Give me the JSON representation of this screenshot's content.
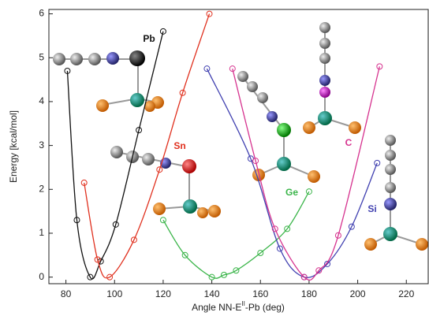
{
  "chart_data": {
    "type": "line",
    "y_label": "Energy [kcal/mol]",
    "x_label_parts": [
      "Angle NN-E",
      "II",
      "-Pb (deg)"
    ],
    "xlim": [
      73,
      229
    ],
    "ylim": [
      -0.15,
      6.1
    ],
    "xticks": [
      80,
      100,
      120,
      140,
      160,
      180,
      200,
      220
    ],
    "yticks": [
      0,
      1,
      2,
      3,
      4,
      5,
      6
    ],
    "series": [
      {
        "name": "Pb",
        "color": "#111111",
        "x": [
          80.6,
          84.5,
          90,
          94.3,
          100.5,
          110,
          120
        ],
        "values": [
          4.7,
          1.3,
          0,
          0.36,
          1.2,
          3.35,
          5.6
        ]
      },
      {
        "name": "Sn",
        "color": "#e0301e",
        "x": [
          87.5,
          93,
          98,
          108,
          118.5,
          128,
          139
        ],
        "values": [
          2.15,
          0.4,
          0,
          0.85,
          2.45,
          4.2,
          6.0
        ]
      },
      {
        "name": "Ge",
        "color": "#3bb54a",
        "x": [
          120,
          129,
          140,
          145,
          150,
          160,
          171,
          180
        ],
        "values": [
          1.3,
          0.5,
          0,
          0.05,
          0.15,
          0.55,
          1.1,
          1.95
        ]
      },
      {
        "name": "Si",
        "color": "#4040b0",
        "x": [
          138,
          156,
          168,
          178,
          187.5,
          197.5,
          208
        ],
        "values": [
          4.75,
          2.7,
          0.65,
          0,
          0.3,
          1.15,
          2.6
        ]
      },
      {
        "name": "C",
        "color": "#d6338f",
        "x": [
          148.5,
          158,
          166,
          178,
          184,
          192,
          209
        ],
        "values": [
          4.75,
          2.65,
          1.1,
          0,
          0.15,
          0.95,
          4.8
        ]
      }
    ]
  }
}
